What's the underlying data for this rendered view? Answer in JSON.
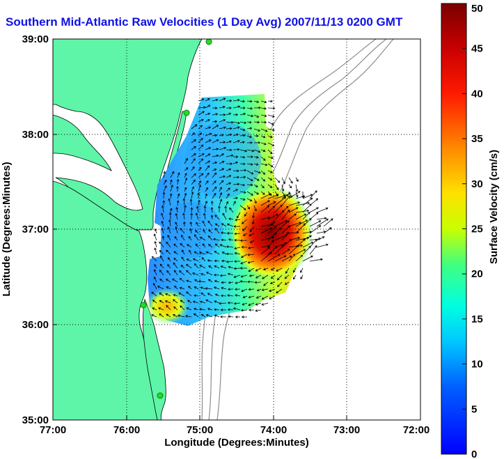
{
  "title": "Southern Mid-Atlantic Raw Velocities (1 Day Avg) 2007/11/13 0200 GMT",
  "axes": {
    "xlabel": "Longitude (Degrees:Minutes)",
    "ylabel": "Latitude (Degrees:Minutes)",
    "x_ticks": [
      "77:00",
      "76:00",
      "75:00",
      "74:00",
      "73:00",
      "72:00"
    ],
    "y_ticks": [
      "39:00",
      "38:00",
      "37:00",
      "36:00",
      "35:00"
    ]
  },
  "colorbar": {
    "label": "Surface Velocity (cm/s)",
    "ticks": [
      "50",
      "45",
      "40",
      "35",
      "30",
      "25",
      "20",
      "15",
      "10",
      "5",
      "0"
    ],
    "range": [
      0,
      50
    ]
  },
  "colors": {
    "land": "#5ef5a8",
    "land_edge": "#000000",
    "bathymetry": "#8c8c8c",
    "title": "#1010e6"
  },
  "stations": [
    "station-1",
    "station-2",
    "station-3",
    "station-4"
  ]
}
